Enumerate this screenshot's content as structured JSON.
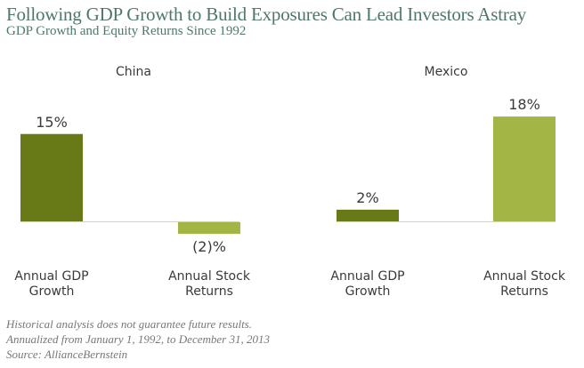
{
  "header": {
    "title": "Following GDP Growth to Build Exposures Can Lead Investors Astray",
    "subtitle": "GDP Growth and Equity Returns Since 1992"
  },
  "footer": {
    "lines": [
      "Historical analysis does not guarantee future results.",
      "Annualized from January 1, 1992, to December 31, 2013",
      "Source: AllianceBernstein"
    ]
  },
  "colors": {
    "gdp": "#677a17",
    "stock": "#a3b545",
    "baseline": "#d0d0d0",
    "text": "#3a3a3a"
  },
  "chart_data": {
    "type": "bar",
    "title": "Following GDP Growth to Build Exposures Can Lead Investors Astray",
    "subtitle": "GDP Growth and Equity Returns Since 1992",
    "xlabel": "",
    "ylabel": "",
    "grid": false,
    "ylim": [
      -2,
      18
    ],
    "panels": [
      {
        "name": "China",
        "categories": [
          "Annual GDP Growth",
          "Annual Stock Returns"
        ],
        "category_lines": [
          [
            "Annual GDP",
            "Growth"
          ],
          [
            "Annual Stock",
            "Returns"
          ]
        ],
        "values": [
          15,
          -2
        ],
        "labels": [
          "15%",
          "(2)%"
        ]
      },
      {
        "name": "Mexico",
        "categories": [
          "Annual GDP Growth",
          "Annual Stock Returns"
        ],
        "category_lines": [
          [
            "Annual GDP",
            "Growth"
          ],
          [
            "Annual Stock",
            "Returns"
          ]
        ],
        "values": [
          2,
          18
        ],
        "labels": [
          "2%",
          "18%"
        ]
      }
    ]
  }
}
